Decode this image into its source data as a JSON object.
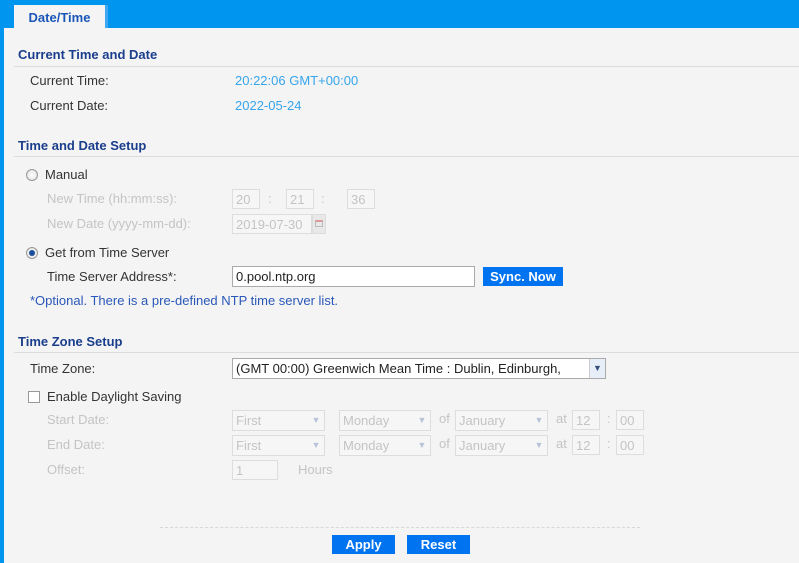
{
  "tab": "Date/Time",
  "current": {
    "title": "Current Time and Date",
    "time_label": "Current Time:",
    "time_value": "20:22:06 GMT+00:00",
    "date_label": "Current Date:",
    "date_value": "2022-05-24"
  },
  "setup": {
    "title": "Time and Date Setup",
    "manual_label": "Manual",
    "manual_selected": false,
    "new_time_label": "New Time (hh:mm:ss):",
    "hh": "20",
    "mm": "21",
    "ss": "36",
    "new_date_label": "New Date (yyyy-mm-dd):",
    "new_date": "2019-07-30",
    "server_label": "Get from Time Server",
    "server_selected": true,
    "server_address_label": "Time Server Address*:",
    "server_address": "0.pool.ntp.org",
    "sync_label": "Sync. Now",
    "note": "*Optional. There is a pre-defined NTP time server list."
  },
  "tz": {
    "title": "Time Zone Setup",
    "tz_label": "Time Zone:",
    "tz_value": "(GMT 00:00) Greenwich Mean Time : Dublin, Edinburgh,",
    "dst_label": "Enable Daylight Saving",
    "dst_checked": false,
    "start_label": "Start Date:",
    "end_label": "End Date:",
    "week": "First",
    "day": "Monday",
    "of": "of",
    "month": "January",
    "at": "at",
    "hour": "12",
    "colon": ":",
    "minute": "00",
    "offset_label": "Offset:",
    "offset": "1",
    "hours_label": "Hours"
  },
  "footer": {
    "apply": "Apply",
    "reset": "Reset"
  },
  "colors": {
    "accent": "#0096f0",
    "button": "#0073f0",
    "heading": "#1a3e8c",
    "value": "#36a5ec"
  }
}
